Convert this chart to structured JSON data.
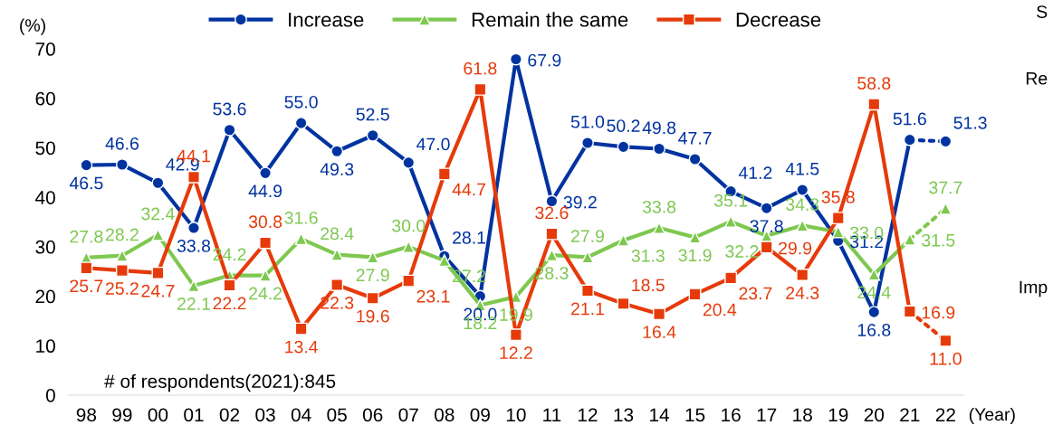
{
  "chart_data": {
    "type": "line",
    "ylabel": "(%)",
    "xlabel": "(Year)",
    "categories": [
      "98",
      "99",
      "00",
      "01",
      "02",
      "03",
      "04",
      "05",
      "06",
      "07",
      "08",
      "09",
      "10",
      "11",
      "12",
      "13",
      "14",
      "15",
      "16",
      "17",
      "18",
      "19",
      "20",
      "21",
      "22"
    ],
    "ylim": [
      0,
      70
    ],
    "yticks": [
      0,
      10,
      20,
      30,
      40,
      50,
      60,
      70
    ],
    "grid": false,
    "legend": "top",
    "series": [
      {
        "name": "Increase",
        "color": "#0033a0",
        "marker": "circle",
        "line_style": "solid",
        "values": [
          46.5,
          46.6,
          42.9,
          33.8,
          53.6,
          44.9,
          55.0,
          49.3,
          52.5,
          47.0,
          28.1,
          20.0,
          67.9,
          39.2,
          51.0,
          50.2,
          49.8,
          47.7,
          41.2,
          37.8,
          41.5,
          31.2,
          16.8,
          51.6,
          null
        ],
        "value_labels": [
          "46.5",
          "46.6",
          "42.9",
          "33.8",
          "53.6",
          "44.9",
          "55.0",
          "49.3",
          "52.5",
          "47.0",
          "28.1",
          "20.0",
          "67.9",
          "39.2",
          "51.0",
          "50.2",
          "49.8",
          "47.7",
          "41.2",
          "37.8",
          "41.5",
          "31.2",
          "16.8",
          "51.6",
          null
        ]
      },
      {
        "name": "Remain the same",
        "color": "#7ec850",
        "marker": "triangle",
        "line_style": "solid",
        "values": [
          27.8,
          28.2,
          32.4,
          22.1,
          24.2,
          24.2,
          31.6,
          28.4,
          27.9,
          30.0,
          27.2,
          18.2,
          19.9,
          28.3,
          27.9,
          31.3,
          33.8,
          31.9,
          35.1,
          32.2,
          34.3,
          33.0,
          24.4,
          31.5,
          null
        ],
        "value_labels": [
          "27.8",
          "28.2",
          "32.4",
          "22.1",
          "24.2",
          "24.2",
          "31.6",
          "28.4",
          "27.9",
          "30.0",
          "27.2",
          "18.2",
          "19.9",
          "28.3",
          "27.9",
          "31.3",
          "33.8",
          "31.9",
          "35.1",
          "32.2",
          "34.3",
          "33.0",
          "24.4",
          "31.5",
          null
        ]
      },
      {
        "name": "Decrease",
        "color": "#e63a0a",
        "marker": "square",
        "line_style": "solid",
        "values": [
          25.7,
          25.2,
          24.7,
          44.1,
          22.2,
          30.8,
          13.4,
          22.3,
          19.6,
          23.1,
          44.7,
          61.8,
          12.2,
          32.6,
          21.1,
          18.5,
          16.4,
          20.4,
          23.7,
          29.9,
          24.3,
          35.8,
          58.8,
          16.9,
          null
        ],
        "value_labels": [
          "25.7",
          "25.2",
          "24.7",
          "44.1",
          "22.2",
          "30.8",
          "13.4",
          "22.3",
          "19.6",
          "23.1",
          "44.7",
          "61.8",
          "12.2",
          "32.6",
          "21.1",
          "18.5",
          "16.4",
          "20.4",
          "23.7",
          "29.9",
          "24.3",
          "35.8",
          "58.8",
          "16.9",
          null
        ]
      },
      {
        "color": "#0033a0",
        "marker": "circle",
        "line_style": "dotted",
        "values": [
          null,
          null,
          null,
          null,
          null,
          null,
          null,
          null,
          null,
          null,
          null,
          null,
          null,
          null,
          null,
          null,
          null,
          null,
          null,
          null,
          null,
          null,
          null,
          51.6,
          51.3
        ],
        "value_labels": [
          null,
          null,
          null,
          null,
          null,
          null,
          null,
          null,
          null,
          null,
          null,
          null,
          null,
          null,
          null,
          null,
          null,
          null,
          null,
          null,
          null,
          null,
          null,
          null,
          "51.3"
        ]
      },
      {
        "color": "#7ec850",
        "marker": "triangle",
        "line_style": "dotted",
        "values": [
          null,
          null,
          null,
          null,
          null,
          null,
          null,
          null,
          null,
          null,
          null,
          null,
          null,
          null,
          null,
          null,
          null,
          null,
          null,
          null,
          null,
          null,
          null,
          31.5,
          37.7
        ],
        "value_labels": [
          null,
          null,
          null,
          null,
          null,
          null,
          null,
          null,
          null,
          null,
          null,
          null,
          null,
          null,
          null,
          null,
          null,
          null,
          null,
          null,
          null,
          null,
          null,
          null,
          "37.7"
        ]
      },
      {
        "color": "#e63a0a",
        "marker": "square",
        "line_style": "dotted",
        "values": [
          null,
          null,
          null,
          null,
          null,
          null,
          null,
          null,
          null,
          null,
          null,
          null,
          null,
          null,
          null,
          null,
          null,
          null,
          null,
          null,
          null,
          null,
          null,
          16.9,
          11.0
        ],
        "value_labels": [
          null,
          null,
          null,
          null,
          null,
          null,
          null,
          null,
          null,
          null,
          null,
          null,
          null,
          null,
          null,
          null,
          null,
          null,
          null,
          null,
          null,
          null,
          null,
          null,
          "11.0"
        ]
      }
    ],
    "annotations": [
      "# of respondents(2021):845",
      "S",
      "Re",
      "Imp"
    ]
  }
}
